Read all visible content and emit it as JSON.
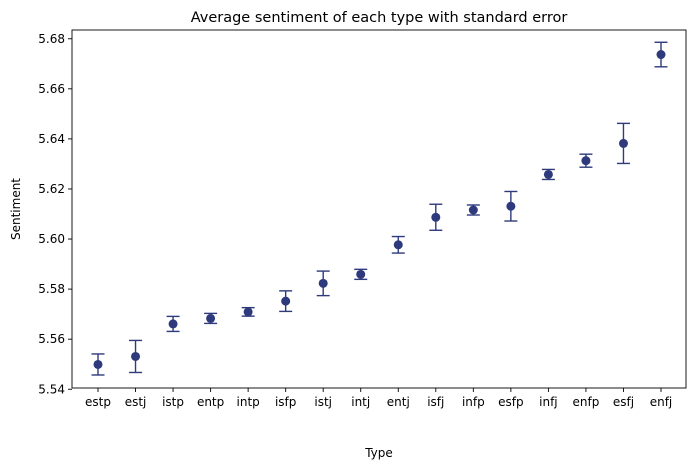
{
  "chart_data": {
    "type": "scatter",
    "title": "Average sentiment of each type with standard error",
    "xlabel": "Type",
    "ylabel": "Sentiment",
    "ylim": [
      5.5405,
      5.6835
    ],
    "yticks": [
      "5.54",
      "5.56",
      "5.58",
      "5.60",
      "5.62",
      "5.64",
      "5.66",
      "5.68"
    ],
    "grid": false,
    "marker_color": "#2e3a7c",
    "categories": [
      "estp",
      "estj",
      "istp",
      "entp",
      "intp",
      "isfp",
      "istj",
      "intj",
      "entj",
      "isfj",
      "infp",
      "esfp",
      "infj",
      "enfp",
      "esfj",
      "enfj"
    ],
    "values": [
      5.5499,
      5.5531,
      5.5661,
      5.5683,
      5.5709,
      5.5752,
      5.5823,
      5.5859,
      5.5977,
      5.6087,
      5.6116,
      5.6131,
      5.6258,
      5.6313,
      5.6382,
      5.6737
    ],
    "errors": [
      0.0042,
      0.0064,
      0.003,
      0.002,
      0.0017,
      0.0041,
      0.0049,
      0.002,
      0.0033,
      0.0052,
      0.002,
      0.0059,
      0.002,
      0.0026,
      0.008,
      0.0049
    ]
  }
}
